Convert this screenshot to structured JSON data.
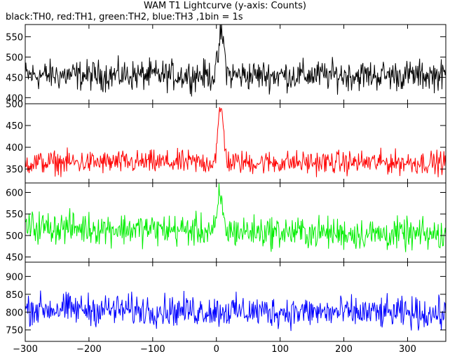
{
  "chart_data": {
    "type": "line",
    "title": "WAM T1 Lightcurve (y-axis: Counts)",
    "subtitle": "black:TH0, red:TH1, green:TH2, blue:TH3 ,1bin = 1s",
    "xlim": [
      -300,
      360
    ],
    "xticks": [
      -300,
      -200,
      -100,
      0,
      100,
      200,
      300
    ],
    "bin_seconds": 1,
    "panels": [
      {
        "series": "TH0",
        "color": "#000000",
        "ylim": [
          385,
          580
        ],
        "yticks": [
          400,
          450,
          500,
          550
        ],
        "baseline": 455,
        "amplitude": 55,
        "burst": {
          "center": 8,
          "width": 6,
          "peak": 575
        }
      },
      {
        "series": "TH1",
        "color": "#ff0000",
        "ylim": [
          318,
          500
        ],
        "yticks": [
          350,
          400,
          450,
          500
        ],
        "baseline": 365,
        "amplitude": 40,
        "burst": {
          "center": 7,
          "width": 6,
          "peak": 500
        }
      },
      {
        "series": "TH2",
        "color": "#00ee00",
        "ylim": [
          438,
          622
        ],
        "yticks": [
          450,
          500,
          550,
          600
        ],
        "baseline": 520,
        "amplitude": 55,
        "trend": -20,
        "burst": {
          "center": 6,
          "width": 5,
          "peak": 620
        }
      },
      {
        "series": "TH3",
        "color": "#0000ff",
        "ylim": [
          718,
          940
        ],
        "yticks": [
          750,
          800,
          850,
          900
        ],
        "baseline": 810,
        "amplitude": 65,
        "trend": -15,
        "burst": null
      }
    ]
  }
}
